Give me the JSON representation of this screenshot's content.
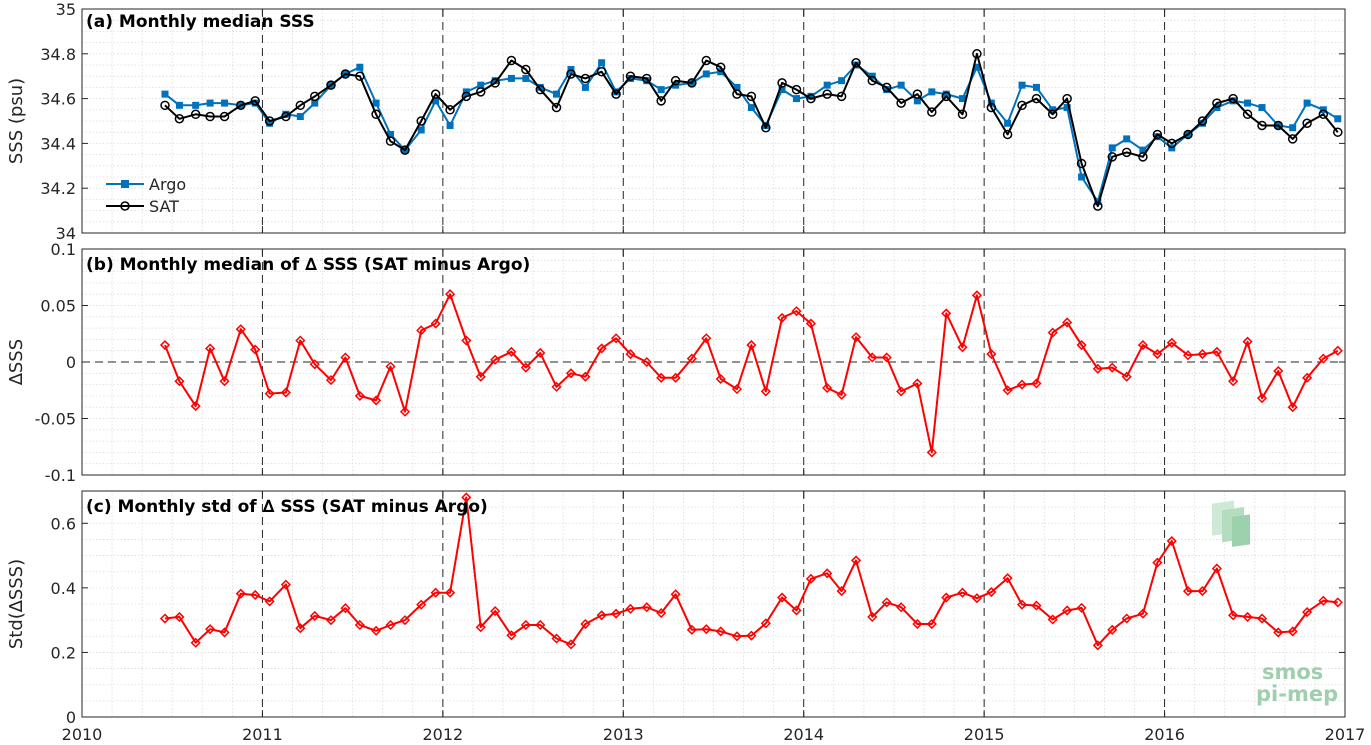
{
  "chart_data": [
    {
      "type": "line",
      "title": "(a) Monthly median SSS",
      "ylabel": "SSS (psu)",
      "xlim": [
        2010,
        2017
      ],
      "ylim": [
        34,
        35
      ],
      "yticks": [
        "34",
        "34.2",
        "34.4",
        "34.6",
        "34.8",
        "35"
      ],
      "grid": true,
      "legend_position": "bottom-left",
      "x": [
        2010.46,
        2010.54,
        2010.63,
        2010.71,
        2010.79,
        2010.88,
        2010.96,
        2011.04,
        2011.13,
        2011.21,
        2011.29,
        2011.38,
        2011.46,
        2011.54,
        2011.63,
        2011.71,
        2011.79,
        2011.88,
        2011.96,
        2012.04,
        2012.13,
        2012.21,
        2012.29,
        2012.38,
        2012.46,
        2012.54,
        2012.63,
        2012.71,
        2012.79,
        2012.88,
        2012.96,
        2013.04,
        2013.13,
        2013.21,
        2013.29,
        2013.38,
        2013.46,
        2013.54,
        2013.63,
        2013.71,
        2013.79,
        2013.88,
        2013.96,
        2014.04,
        2014.13,
        2014.21,
        2014.29,
        2014.38,
        2014.46,
        2014.54,
        2014.63,
        2014.71,
        2014.79,
        2014.88,
        2014.96,
        2015.04,
        2015.13,
        2015.21,
        2015.29,
        2015.38,
        2015.46,
        2015.54,
        2015.63,
        2015.71,
        2015.79,
        2015.88,
        2015.96,
        2016.04,
        2016.13,
        2016.21,
        2016.29,
        2016.38,
        2016.46,
        2016.54,
        2016.63,
        2016.71,
        2016.79,
        2016.88,
        2016.96
      ],
      "series": [
        {
          "name": "Argo",
          "color": "#0072bd",
          "marker": "filled-square",
          "values": [
            34.62,
            34.57,
            34.57,
            34.58,
            34.58,
            34.57,
            34.58,
            34.49,
            34.53,
            34.52,
            34.58,
            34.66,
            34.71,
            34.74,
            34.58,
            34.44,
            34.37,
            34.46,
            34.59,
            34.48,
            34.63,
            34.66,
            34.68,
            34.69,
            34.69,
            34.65,
            34.62,
            34.73,
            34.65,
            34.76,
            34.63,
            34.69,
            34.68,
            34.64,
            34.66,
            34.67,
            34.71,
            34.72,
            34.65,
            34.56,
            34.48,
            34.64,
            34.6,
            34.61,
            34.66,
            34.68,
            34.75,
            34.7,
            34.64,
            34.66,
            34.59,
            34.63,
            34.62,
            34.6,
            34.74,
            34.58,
            34.49,
            34.66,
            34.65,
            34.55,
            34.56,
            34.25,
            34.14,
            34.38,
            34.42,
            34.37,
            34.43,
            34.38,
            34.44,
            34.49,
            34.56,
            34.59,
            34.58,
            34.56,
            34.48,
            34.47,
            34.58,
            34.55,
            34.51
          ]
        },
        {
          "name": "SAT",
          "color": "#000000",
          "marker": "open-circle",
          "values": [
            34.57,
            34.51,
            34.53,
            34.52,
            34.52,
            34.57,
            34.59,
            34.5,
            34.52,
            34.57,
            34.61,
            34.66,
            34.71,
            34.7,
            34.53,
            34.41,
            34.37,
            34.5,
            34.62,
            34.55,
            34.61,
            34.63,
            34.67,
            34.77,
            34.73,
            34.64,
            34.56,
            34.71,
            34.69,
            34.72,
            34.62,
            34.7,
            34.69,
            34.59,
            34.68,
            34.67,
            34.77,
            34.74,
            34.62,
            34.61,
            34.47,
            34.67,
            34.64,
            34.6,
            34.62,
            34.61,
            34.76,
            34.68,
            34.65,
            34.58,
            34.62,
            34.54,
            34.61,
            34.53,
            34.8,
            34.56,
            34.44,
            34.57,
            34.6,
            34.53,
            34.6,
            34.31,
            34.12,
            34.34,
            34.36,
            34.34,
            34.44,
            34.4,
            34.44,
            34.5,
            34.58,
            34.6,
            34.53,
            34.48,
            34.48,
            34.42,
            34.49,
            34.53,
            34.45
          ]
        }
      ]
    },
    {
      "type": "line",
      "title": "(b) Monthly median of ∆ SSS (SAT minus Argo)",
      "ylabel": "∆SSS",
      "xlim": [
        2010,
        2017
      ],
      "ylim": [
        -0.1,
        0.1
      ],
      "yticks": [
        "-0.1",
        "-0.05",
        "0",
        "0.05",
        "0.1"
      ],
      "grid": true,
      "zero_line": true,
      "x": [
        2010.46,
        2010.54,
        2010.63,
        2010.71,
        2010.79,
        2010.88,
        2010.96,
        2011.04,
        2011.13,
        2011.21,
        2011.29,
        2011.38,
        2011.46,
        2011.54,
        2011.63,
        2011.71,
        2011.79,
        2011.88,
        2011.96,
        2012.04,
        2012.13,
        2012.21,
        2012.29,
        2012.38,
        2012.46,
        2012.54,
        2012.63,
        2012.71,
        2012.79,
        2012.88,
        2012.96,
        2013.04,
        2013.13,
        2013.21,
        2013.29,
        2013.38,
        2013.46,
        2013.54,
        2013.63,
        2013.71,
        2013.79,
        2013.88,
        2013.96,
        2014.04,
        2014.13,
        2014.21,
        2014.29,
        2014.38,
        2014.46,
        2014.54,
        2014.63,
        2014.71,
        2014.79,
        2014.88,
        2014.96,
        2015.04,
        2015.13,
        2015.21,
        2015.29,
        2015.38,
        2015.46,
        2015.54,
        2015.63,
        2015.71,
        2015.79,
        2015.88,
        2015.96,
        2016.04,
        2016.13,
        2016.21,
        2016.29,
        2016.38,
        2016.46,
        2016.54,
        2016.63,
        2016.71,
        2016.79,
        2016.88,
        2016.96
      ],
      "series": [
        {
          "name": "",
          "color": "#ff0000",
          "marker": "open-diamond",
          "values": [
            0.015,
            -0.017,
            -0.039,
            0.012,
            -0.017,
            0.029,
            0.011,
            -0.028,
            -0.027,
            0.019,
            -0.002,
            -0.016,
            0.004,
            -0.03,
            -0.034,
            -0.004,
            -0.044,
            0.028,
            0.034,
            0.06,
            0.019,
            -0.013,
            0.002,
            0.009,
            -0.005,
            0.008,
            -0.022,
            -0.01,
            -0.013,
            0.012,
            0.021,
            0.007,
            0.0,
            -0.014,
            -0.014,
            0.003,
            0.021,
            -0.015,
            -0.024,
            0.015,
            -0.026,
            0.039,
            0.045,
            0.034,
            -0.023,
            -0.029,
            0.022,
            0.004,
            0.004,
            -0.026,
            -0.019,
            -0.08,
            0.043,
            0.013,
            0.059,
            0.007,
            -0.025,
            -0.02,
            -0.019,
            0.026,
            0.035,
            0.015,
            -0.006,
            -0.005,
            -0.013,
            0.015,
            0.007,
            0.017,
            0.006,
            0.007,
            0.009,
            -0.017,
            0.018,
            -0.032,
            -0.008,
            -0.04,
            -0.014,
            0.003,
            0.01
          ]
        }
      ]
    },
    {
      "type": "line",
      "title": "(c) Monthly std of ∆ SSS (SAT minus Argo)",
      "ylabel": "Std(∆SSS)",
      "xlim": [
        2010,
        2017
      ],
      "ylim": [
        0,
        0.7
      ],
      "yticks": [
        "0",
        "0.2",
        "0.4",
        "0.6"
      ],
      "xticks": [
        "2010",
        "2011",
        "2012",
        "2013",
        "2014",
        "2015",
        "2016",
        "2017"
      ],
      "grid": true,
      "x": [
        2010.46,
        2010.54,
        2010.63,
        2010.71,
        2010.79,
        2010.88,
        2010.96,
        2011.04,
        2011.13,
        2011.21,
        2011.29,
        2011.38,
        2011.46,
        2011.54,
        2011.63,
        2011.71,
        2011.79,
        2011.88,
        2011.96,
        2012.04,
        2012.13,
        2012.21,
        2012.29,
        2012.38,
        2012.46,
        2012.54,
        2012.63,
        2012.71,
        2012.79,
        2012.88,
        2012.96,
        2013.04,
        2013.13,
        2013.21,
        2013.29,
        2013.38,
        2013.46,
        2013.54,
        2013.63,
        2013.71,
        2013.79,
        2013.88,
        2013.96,
        2014.04,
        2014.13,
        2014.21,
        2014.29,
        2014.38,
        2014.46,
        2014.54,
        2014.63,
        2014.71,
        2014.79,
        2014.88,
        2014.96,
        2015.04,
        2015.13,
        2015.21,
        2015.29,
        2015.38,
        2015.46,
        2015.54,
        2015.63,
        2015.71,
        2015.79,
        2015.88,
        2015.96,
        2016.04,
        2016.13,
        2016.21,
        2016.29,
        2016.38,
        2016.46,
        2016.54,
        2016.63,
        2016.71,
        2016.79,
        2016.88,
        2016.96
      ],
      "series": [
        {
          "name": "",
          "color": "#ff0000",
          "marker": "open-diamond",
          "values": [
            0.305,
            0.31,
            0.23,
            0.272,
            0.262,
            0.382,
            0.378,
            0.358,
            0.41,
            0.275,
            0.313,
            0.3,
            0.337,
            0.285,
            0.267,
            0.285,
            0.3,
            0.348,
            0.385,
            0.385,
            0.68,
            0.278,
            0.328,
            0.253,
            0.285,
            0.285,
            0.243,
            0.225,
            0.288,
            0.315,
            0.32,
            0.335,
            0.34,
            0.322,
            0.38,
            0.27,
            0.272,
            0.265,
            0.25,
            0.252,
            0.29,
            0.37,
            0.33,
            0.428,
            0.445,
            0.39,
            0.485,
            0.31,
            0.355,
            0.34,
            0.288,
            0.288,
            0.37,
            0.385,
            0.368,
            0.387,
            0.43,
            0.348,
            0.345,
            0.302,
            0.33,
            0.338,
            0.222,
            0.27,
            0.305,
            0.32,
            0.478,
            0.545,
            0.39,
            0.39,
            0.46,
            0.315,
            0.31,
            0.305,
            0.262,
            0.265,
            0.325,
            0.36,
            0.355
          ]
        }
      ]
    }
  ],
  "watermark": {
    "line1": "smos",
    "line2": "pi-mep"
  }
}
